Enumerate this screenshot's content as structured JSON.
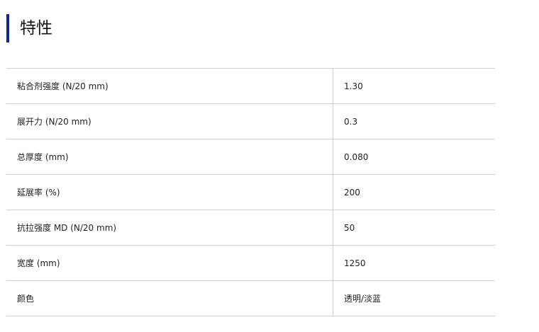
{
  "section": {
    "title": "特性",
    "accent_color": "#0d2a8a"
  },
  "properties": [
    {
      "label": "粘合剂强度 (N/20 mm)",
      "value": "1.30"
    },
    {
      "label": "展开力 (N/20 mm)",
      "value": "0.3"
    },
    {
      "label": "总厚度 (mm)",
      "value": "0.080"
    },
    {
      "label": "延展率 (%)",
      "value": "200"
    },
    {
      "label": "抗拉强度 MD (N/20 mm)",
      "value": "50"
    },
    {
      "label": "宽度 (mm)",
      "value": "1250"
    },
    {
      "label": "颜色",
      "value": "透明/淡蓝"
    }
  ]
}
